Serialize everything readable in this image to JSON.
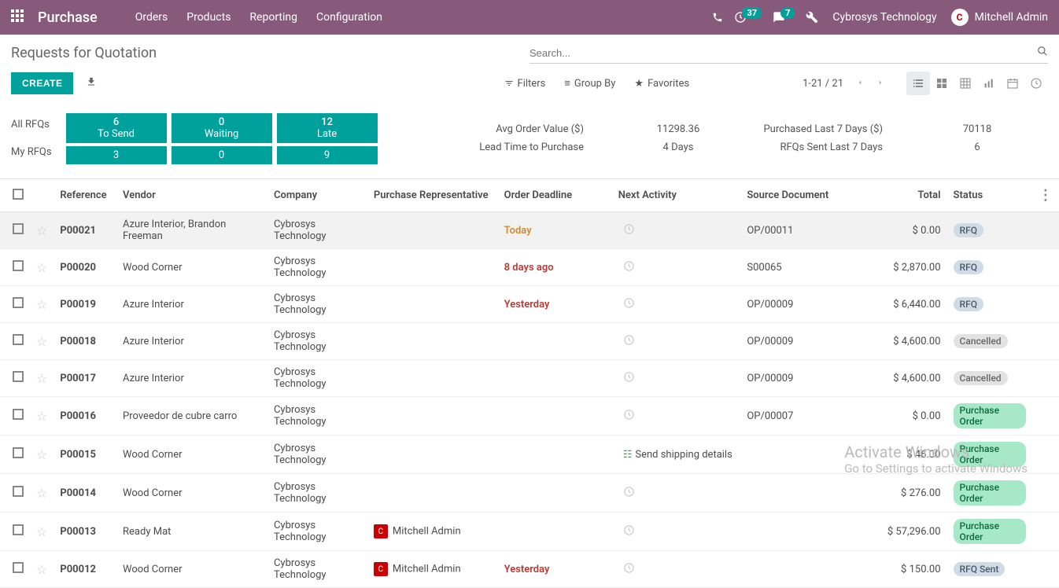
{
  "topbar": {
    "brand": "Purchase",
    "nav": [
      "Orders",
      "Products",
      "Reporting",
      "Configuration"
    ],
    "activity_count": "37",
    "message_count": "7",
    "company": "Cybrosys Technology",
    "user": "Mitchell Admin"
  },
  "header": {
    "title": "Requests for Quotation",
    "search_placeholder": "Search...",
    "create": "CREATE",
    "filters": "Filters",
    "groupby": "Group By",
    "favorites": "Favorites",
    "pager": "1-21 / 21"
  },
  "dashboard": {
    "all_label": "All RFQs",
    "my_label": "My RFQs",
    "tiles": [
      {
        "num": "6",
        "lbl": "To Send",
        "my": "3"
      },
      {
        "num": "0",
        "lbl": "Waiting",
        "my": "0"
      },
      {
        "num": "12",
        "lbl": "Late",
        "my": "9"
      }
    ],
    "stats": {
      "avg_label": "Avg Order Value ($)",
      "avg_val": "11298.36",
      "lead_label": "Lead Time to Purchase",
      "lead_val": "4  Days",
      "purch_label": "Purchased Last 7 Days ($)",
      "purch_val": "70118",
      "sent_label": "RFQs Sent Last 7 Days",
      "sent_val": "6"
    }
  },
  "columns": {
    "reference": "Reference",
    "vendor": "Vendor",
    "company": "Company",
    "rep": "Purchase Representative",
    "deadline": "Order Deadline",
    "activity": "Next Activity",
    "source": "Source Document",
    "total": "Total",
    "status": "Status"
  },
  "rows": [
    {
      "ref": "P00021",
      "vendor": "Azure Interior, Brandon Freeman",
      "company": "Cybrosys Technology",
      "rep": "",
      "deadline": "Today",
      "deadline_class": "deadline-today",
      "activity": "clock",
      "source": "OP/00011",
      "total": "$ 0.00",
      "status": "RFQ",
      "status_class": "status-rfq",
      "selected": true
    },
    {
      "ref": "P00020",
      "vendor": "Wood Corner",
      "company": "Cybrosys Technology",
      "rep": "",
      "deadline": "8 days ago",
      "deadline_class": "deadline-late",
      "activity": "clock",
      "source": "S00065",
      "total": "$ 2,870.00",
      "status": "RFQ",
      "status_class": "status-rfq"
    },
    {
      "ref": "P00019",
      "vendor": "Azure Interior",
      "company": "Cybrosys Technology",
      "rep": "",
      "deadline": "Yesterday",
      "deadline_class": "deadline-late",
      "activity": "clock",
      "source": "OP/00009",
      "total": "$ 6,440.00",
      "status": "RFQ",
      "status_class": "status-rfq"
    },
    {
      "ref": "P00018",
      "vendor": "Azure Interior",
      "company": "Cybrosys Technology",
      "rep": "",
      "deadline": "",
      "deadline_class": "",
      "activity": "clock",
      "source": "OP/00009",
      "total": "$ 4,600.00",
      "status": "Cancelled",
      "status_class": "status-cancelled"
    },
    {
      "ref": "P00017",
      "vendor": "Azure Interior",
      "company": "Cybrosys Technology",
      "rep": "",
      "deadline": "",
      "deadline_class": "",
      "activity": "clock",
      "source": "OP/00009",
      "total": "$ 4,600.00",
      "status": "Cancelled",
      "status_class": "status-cancelled"
    },
    {
      "ref": "P00016",
      "vendor": "Proveedor de cubre carro",
      "company": "Cybrosys Technology",
      "rep": "",
      "deadline": "",
      "deadline_class": "",
      "activity": "clock",
      "source": "OP/00007",
      "total": "$ 0.00",
      "status": "Purchase Order",
      "status_class": "status-po"
    },
    {
      "ref": "P00015",
      "vendor": "Wood Corner",
      "company": "Cybrosys Technology",
      "rep": "",
      "deadline": "",
      "deadline_class": "",
      "activity": "shipping",
      "activity_text": "Send shipping details",
      "source": "",
      "total": "$ 46.00",
      "status": "Purchase Order",
      "status_class": "status-po"
    },
    {
      "ref": "P00014",
      "vendor": "Wood Corner",
      "company": "Cybrosys Technology",
      "rep": "",
      "deadline": "",
      "deadline_class": "",
      "activity": "clock",
      "source": "",
      "total": "$ 276.00",
      "status": "Purchase Order",
      "status_class": "status-po"
    },
    {
      "ref": "P00013",
      "vendor": "Ready Mat",
      "company": "Cybrosys Technology",
      "rep": "Mitchell Admin",
      "deadline": "",
      "deadline_class": "",
      "activity": "clock",
      "source": "",
      "total": "$ 57,296.00",
      "status": "Purchase Order",
      "status_class": "status-po"
    },
    {
      "ref": "P00012",
      "vendor": "Wood Corner",
      "company": "Cybrosys Technology",
      "rep": "Mitchell Admin",
      "deadline": "Yesterday",
      "deadline_class": "deadline-late",
      "activity": "clock",
      "source": "",
      "total": "$ 150.00",
      "status": "RFQ Sent",
      "status_class": "status-sent"
    }
  ],
  "watermark": {
    "line1": "Activate Windows",
    "line2": "Go to Settings to activate Windows"
  }
}
